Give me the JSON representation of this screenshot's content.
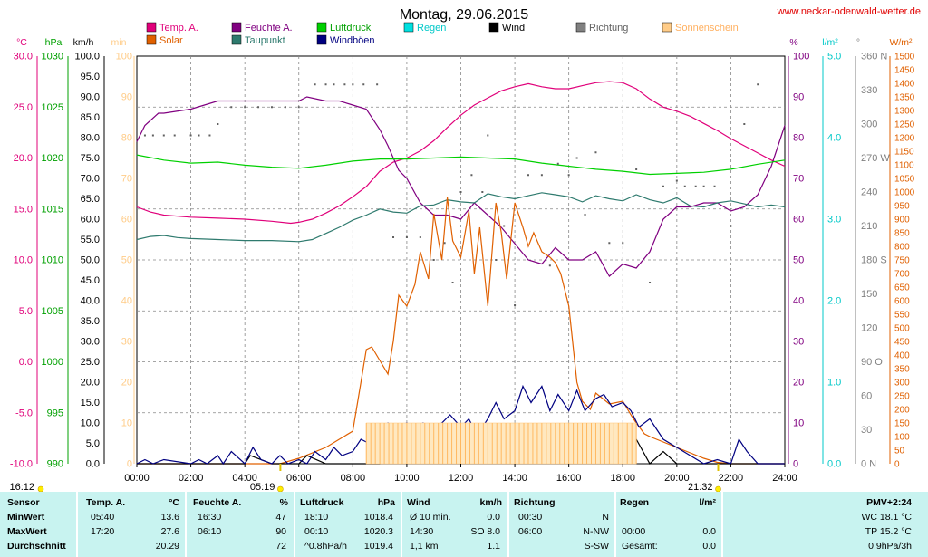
{
  "header": {
    "title": "Montag, 29.06.2015",
    "site": "www.neckar-odenwald-wetter.de"
  },
  "chart_data": {
    "type": "line",
    "x_ticks": [
      "00:00",
      "02:00",
      "04:00",
      "06:00",
      "08:00",
      "10:00",
      "12:00",
      "14:00",
      "16:00",
      "18:00",
      "20:00",
      "22:00",
      "24:00"
    ],
    "sunrise": "05:19",
    "sunset": "21:32",
    "midnight_marker": "16:12",
    "axes": {
      "temp": {
        "label": "°C",
        "color": "#e0007a",
        "ticks": [
          "30.0",
          "25.0",
          "20.0",
          "15.0",
          "10.0",
          "5.0",
          "0.0",
          "-5.0",
          "-10.0"
        ],
        "ylim": [
          -10,
          30
        ]
      },
      "press": {
        "label": "hPa",
        "color": "#00a000",
        "ticks": [
          "1030",
          "1025",
          "1020",
          "1015",
          "1010",
          "1005",
          "1000",
          "995",
          "990"
        ],
        "ylim": [
          990,
          1030
        ]
      },
      "wind": {
        "label": "km/h",
        "color": "#000000",
        "ticks": [
          "100.0",
          "95.0",
          "90.0",
          "85.0",
          "80.0",
          "75.0",
          "70.0",
          "65.0",
          "60.0",
          "55.0",
          "50.0",
          "45.0",
          "40.0",
          "35.0",
          "30.0",
          "25.0",
          "20.0",
          "15.0",
          "10.0",
          "5.0",
          "0.0"
        ],
        "ylim": [
          0,
          100
        ]
      },
      "sun": {
        "label": "min",
        "color": "#ffcc88",
        "ticks": [
          "100",
          "90",
          "80",
          "70",
          "60",
          "50",
          "40",
          "30",
          "20",
          "10",
          "0"
        ],
        "ylim": [
          0,
          100
        ]
      },
      "hum": {
        "label": "%",
        "color": "#800080",
        "ticks": [
          "100",
          "90",
          "80",
          "70",
          "60",
          "50",
          "40",
          "30",
          "20",
          "10",
          "0"
        ],
        "ylim": [
          0,
          100
        ]
      },
      "rain": {
        "label": "l/m²",
        "color": "#00c8c8",
        "ticks": [
          "5.0",
          "4.0",
          "3.0",
          "2.0",
          "1.0",
          "0.0"
        ],
        "ylim": [
          0,
          5
        ]
      },
      "dir": {
        "label": "°",
        "color": "#808080",
        "ticks": [
          "360 N",
          "330",
          "300",
          "270 W",
          "240",
          "210",
          "180 S",
          "150",
          "120",
          "90 O",
          "60",
          "30",
          "0 N"
        ],
        "ylim": [
          0,
          360
        ]
      },
      "solar": {
        "label": "W/m²",
        "color": "#e06000",
        "ticks": [
          "1500",
          "1450",
          "1400",
          "1350",
          "1300",
          "1250",
          "1200",
          "1150",
          "1100",
          "1050",
          "1000",
          "950",
          "900",
          "850",
          "800",
          "750",
          "700",
          "650",
          "600",
          "550",
          "500",
          "450",
          "400",
          "350",
          "300",
          "250",
          "200",
          "150",
          "100",
          "50",
          "0"
        ],
        "ylim": [
          0,
          1500
        ]
      }
    },
    "legend": [
      {
        "name": "Temp. A.",
        "color": "#e0007a",
        "text_color": "#e0007a"
      },
      {
        "name": "Feuchte A.",
        "color": "#800080",
        "text_color": "#800080"
      },
      {
        "name": "Luftdruck",
        "color": "#00d000",
        "text_color": "#00a000"
      },
      {
        "name": "Regen",
        "color": "#00e0e0",
        "text_color": "#00c8c8"
      },
      {
        "name": "Wind",
        "color": "#000000",
        "text_color": "#000000"
      },
      {
        "name": "Richtung",
        "color": "#808080",
        "text_color": "#606060"
      },
      {
        "name": "Sonnenschein",
        "color": "#ffcc88",
        "text_color": "#ffb060"
      },
      {
        "name": "Solar",
        "color": "#e06000",
        "text_color": "#e06000"
      },
      {
        "name": "Taupunkt",
        "color": "#2e7a6e",
        "text_color": "#2e7a6e"
      },
      {
        "name": "Windböen",
        "color": "#000080",
        "text_color": "#000080"
      }
    ],
    "series": [
      {
        "key": "temp",
        "name": "Temp. A.",
        "axis": "temp",
        "color": "#e0007a",
        "x": [
          0,
          0.5,
          1,
          2,
          3,
          4,
          5,
          5.7,
          6,
          6.5,
          7,
          7.5,
          8,
          8.5,
          9,
          9.5,
          10,
          10.5,
          11,
          11.5,
          12,
          12.5,
          13,
          13.5,
          14,
          14.5,
          15,
          15.5,
          16,
          16.5,
          17,
          17.5,
          18,
          18.5,
          19,
          19.5,
          20,
          20.5,
          21,
          21.5,
          22,
          22.5,
          23,
          23.5,
          24
        ],
        "y": [
          15.2,
          14.7,
          14.4,
          14.2,
          14.1,
          14.0,
          13.8,
          13.6,
          13.7,
          14.0,
          14.6,
          15.3,
          16.2,
          17.2,
          18.7,
          19.6,
          20.0,
          20.7,
          21.7,
          23.0,
          24.2,
          25.2,
          25.9,
          26.6,
          27.0,
          27.3,
          27.0,
          26.8,
          26.8,
          27.1,
          27.4,
          27.5,
          27.4,
          26.8,
          25.8,
          25.0,
          24.6,
          24.1,
          23.4,
          22.7,
          21.9,
          21.2,
          20.5,
          19.8,
          19.2
        ]
      },
      {
        "key": "hum",
        "name": "Feuchte A.",
        "axis": "hum",
        "color": "#800080",
        "x": [
          0,
          0.3,
          0.8,
          1,
          2,
          2.5,
          3,
          4,
          5,
          6,
          6.3,
          7,
          7.5,
          8,
          8.5,
          9,
          9.3,
          9.7,
          10,
          10.5,
          11,
          11.5,
          12,
          12.5,
          13,
          13.5,
          14,
          14.5,
          15,
          15.5,
          16,
          16.5,
          17,
          17.5,
          18,
          18.5,
          19,
          19.5,
          20,
          20.5,
          21,
          21.5,
          22,
          22.5,
          23,
          23.5,
          24
        ],
        "y": [
          79,
          83,
          86,
          86,
          87,
          88,
          89,
          89,
          89,
          89,
          90,
          89,
          89,
          88,
          87,
          82,
          78,
          72,
          70,
          64,
          61,
          61,
          60,
          64,
          61,
          58,
          54,
          50,
          49,
          53,
          50,
          50,
          52,
          46,
          49,
          48,
          52,
          60,
          63,
          63,
          64,
          64,
          62,
          63,
          66,
          73,
          83
        ]
      },
      {
        "key": "press",
        "name": "Luftdruck",
        "axis": "press",
        "color": "#00d000",
        "x": [
          0,
          1,
          2,
          3,
          4,
          5,
          6,
          7,
          8,
          9,
          10,
          11,
          12,
          13,
          14,
          15,
          16,
          17,
          18,
          19,
          20,
          21,
          22,
          23,
          24
        ],
        "y": [
          1020.3,
          1019.8,
          1019.5,
          1019.6,
          1019.3,
          1019.1,
          1019.0,
          1019.3,
          1019.7,
          1019.9,
          1019.9,
          1020.0,
          1020.1,
          1020.0,
          1019.9,
          1019.5,
          1019.2,
          1018.9,
          1018.7,
          1018.4,
          1018.5,
          1018.6,
          1018.9,
          1019.4,
          1019.8
        ]
      },
      {
        "key": "dew",
        "name": "Taupunkt",
        "axis": "temp",
        "color": "#2e7a6e",
        "x": [
          0,
          0.5,
          1,
          1.5,
          2,
          3,
          4,
          5,
          6,
          6.5,
          7,
          7.5,
          8,
          8.5,
          9,
          9.5,
          10,
          10.5,
          11,
          11.5,
          12,
          12.5,
          13,
          13.5,
          14,
          14.5,
          15,
          15.5,
          16,
          16.5,
          17,
          17.5,
          18,
          18.5,
          19,
          19.5,
          20,
          20.5,
          21,
          21.5,
          22,
          22.5,
          23,
          23.5,
          24
        ],
        "y": [
          12.0,
          12.3,
          12.4,
          12.2,
          12.1,
          12.0,
          11.9,
          11.9,
          11.8,
          12.0,
          12.6,
          13.2,
          13.9,
          14.4,
          15.0,
          14.7,
          14.6,
          15.3,
          15.4,
          15.9,
          15.7,
          15.6,
          16.5,
          16.2,
          16.0,
          16.3,
          16.6,
          16.4,
          16.2,
          15.7,
          16.3,
          16.0,
          15.8,
          16.4,
          15.9,
          15.6,
          16.1,
          15.3,
          15.2,
          15.6,
          15.8,
          15.5,
          15.2,
          15.4,
          15.2
        ]
      },
      {
        "key": "solar",
        "name": "Solar",
        "axis": "solar",
        "color": "#e06000",
        "x": [
          0,
          5.3,
          6,
          7,
          8,
          8.3,
          8.5,
          8.7,
          9,
          9.3,
          9.5,
          9.7,
          10,
          10.3,
          10.5,
          10.8,
          11,
          11.3,
          11.5,
          11.7,
          12,
          12.3,
          12.5,
          12.7,
          13,
          13.3,
          13.5,
          13.7,
          14,
          14.3,
          14.5,
          14.7,
          15,
          15.3,
          15.5,
          15.7,
          16,
          16.3,
          16.5,
          16.8,
          17,
          17.5,
          18,
          18.3,
          18.5,
          18.8,
          19,
          19.5,
          20,
          20.5,
          21,
          21.5,
          22,
          24
        ],
        "y": [
          0,
          0,
          20,
          60,
          120,
          300,
          420,
          430,
          380,
          330,
          450,
          620,
          580,
          660,
          780,
          680,
          920,
          750,
          980,
          820,
          760,
          930,
          700,
          870,
          580,
          960,
          850,
          680,
          960,
          870,
          800,
          850,
          780,
          760,
          740,
          700,
          580,
          300,
          230,
          200,
          260,
          220,
          230,
          180,
          150,
          110,
          100,
          80,
          60,
          40,
          20,
          5,
          0,
          0
        ]
      },
      {
        "key": "wind",
        "name": "Wind",
        "axis": "wind",
        "color": "#000000",
        "x": [
          0,
          4,
          4.2,
          5,
          5.5,
          6,
          6.3,
          7,
          8,
          9,
          9.5,
          10,
          10.5,
          11,
          11.5,
          12,
          12.5,
          13,
          13.3,
          13.7,
          14,
          14.3,
          14.5,
          15,
          15.5,
          16,
          16.3,
          16.5,
          17,
          17.5,
          18,
          18.5,
          19,
          19.5,
          20,
          21,
          24
        ],
        "y": [
          0,
          0,
          2,
          0,
          0,
          0,
          2,
          0,
          0,
          0,
          3,
          5,
          7,
          9,
          9,
          5,
          4,
          5,
          7,
          2,
          5,
          6,
          8,
          5,
          6,
          4,
          2,
          6,
          8,
          5,
          7,
          6,
          0,
          3,
          0,
          0,
          0
        ]
      },
      {
        "key": "gust",
        "name": "Windböen",
        "axis": "wind",
        "color": "#000080",
        "x": [
          0,
          0.3,
          0.6,
          1,
          2,
          2.3,
          2.6,
          3,
          3.2,
          3.5,
          4,
          4.3,
          4.6,
          5,
          5.3,
          5.6,
          6,
          6.3,
          6.6,
          7,
          7.3,
          7.6,
          8,
          8.3,
          8.6,
          9,
          9.3,
          9.6,
          10,
          10.3,
          10.6,
          11,
          11.3,
          11.6,
          12,
          12.3,
          12.6,
          13,
          13.3,
          13.6,
          14,
          14.3,
          14.6,
          15,
          15.3,
          15.6,
          16,
          16.3,
          16.6,
          17,
          17.3,
          17.6,
          18,
          18.3,
          18.6,
          19,
          19.5,
          20,
          20.5,
          21,
          21.5,
          22,
          22.3,
          22.6,
          23,
          24
        ],
        "y": [
          0,
          1,
          0,
          1,
          0,
          1,
          0,
          2,
          0,
          3,
          0,
          4,
          1,
          0,
          2,
          0,
          1,
          0,
          3,
          1,
          4,
          2,
          3,
          6,
          5,
          9,
          10,
          9,
          10,
          9,
          10,
          9,
          10,
          12,
          9,
          11,
          7,
          11,
          15,
          11,
          13,
          19,
          15,
          19,
          13,
          17,
          13,
          18,
          13,
          16,
          17,
          14,
          15,
          13,
          9,
          11,
          6,
          4,
          2,
          0,
          1,
          0,
          6,
          3,
          0,
          0
        ]
      },
      {
        "key": "dir",
        "name": "Richtung",
        "axis": "dir",
        "color": "#606060",
        "style": "dots",
        "x": [
          0.3,
          0.6,
          1,
          1.4,
          2,
          2.3,
          2.7,
          3,
          3.5,
          4,
          4.5,
          5,
          5.5,
          6,
          6.6,
          7,
          7.3,
          7.7,
          8,
          8.4,
          8.9,
          9.5,
          10,
          10.5,
          11,
          11.4,
          11.7,
          12,
          12.4,
          12.8,
          13,
          13.3,
          13.6,
          14,
          14.5,
          15,
          15.3,
          15.6,
          16,
          16.3,
          16.6,
          17,
          17.5,
          18,
          18.5,
          19,
          19.5,
          20,
          20.3,
          20.7,
          21,
          21.4,
          22,
          22.5,
          23
        ],
        "y": [
          290,
          290,
          290,
          290,
          290,
          290,
          290,
          300,
          315,
          315,
          315,
          315,
          315,
          315,
          335,
          335,
          335,
          335,
          335,
          335,
          335,
          200,
          200,
          200,
          180,
          195,
          160,
          240,
          255,
          240,
          290,
          180,
          210,
          140,
          255,
          255,
          175,
          265,
          255,
          270,
          220,
          275,
          195,
          195,
          260,
          160,
          245,
          250,
          245,
          245,
          245,
          245,
          210,
          300,
          335
        ]
      },
      {
        "key": "sun",
        "name": "Sonnenschein",
        "axis": "sun",
        "color": "#ffcc88",
        "style": "bars",
        "x_start": 8.5,
        "x_end": 18.5,
        "value": 10
      }
    ]
  },
  "stats": {
    "headers": {
      "sensor": "Sensor",
      "temp": "Temp. A.",
      "temp_unit": "°C",
      "hum": "Feuchte A.",
      "hum_unit": "%",
      "press": "Luftdruck",
      "press_unit": "hPa",
      "wind": "Wind",
      "wind_unit": "km/h",
      "dir": "Richtung",
      "rain": "Regen",
      "rain_unit": "l/m²",
      "pmv": "PMV+2:24"
    },
    "rows": [
      {
        "label": "MinWert",
        "temp_time": "05:40",
        "temp_val": "13.6",
        "hum_time": "16:30",
        "hum_val": "47",
        "press_time": "18:10",
        "press_val": "1018.4",
        "wind_time": "Ø 10 min.",
        "wind_val": "0.0",
        "dir_time": "00:30",
        "dir_val": "N",
        "rain_time": "",
        "rain_val": "",
        "pmv": "WC 18.1 °C"
      },
      {
        "label": "MaxWert",
        "temp_time": "17:20",
        "temp_val": "27.6",
        "hum_time": "06:10",
        "hum_val": "90",
        "press_time": "00:10",
        "press_val": "1020.3",
        "wind_time": "14:30",
        "wind_val": "SO 8.0",
        "dir_time": "06:00",
        "dir_val": "N-NW",
        "rain_time": "00:00",
        "rain_val": "0.0",
        "pmv": "TP 15.2 °C"
      },
      {
        "label": "Durchschnitt",
        "temp_time": "",
        "temp_val": "20.29",
        "hum_time": "",
        "hum_val": "72",
        "press_time": "^0.8hPa/h",
        "press_val": "1019.4",
        "wind_time": "1,1 km",
        "wind_val": "1.1",
        "dir_time": "",
        "dir_val": "S-SW",
        "rain_time": "Gesamt:",
        "rain_val": "0.0",
        "pmv": "0.9hPa/3h"
      }
    ]
  }
}
